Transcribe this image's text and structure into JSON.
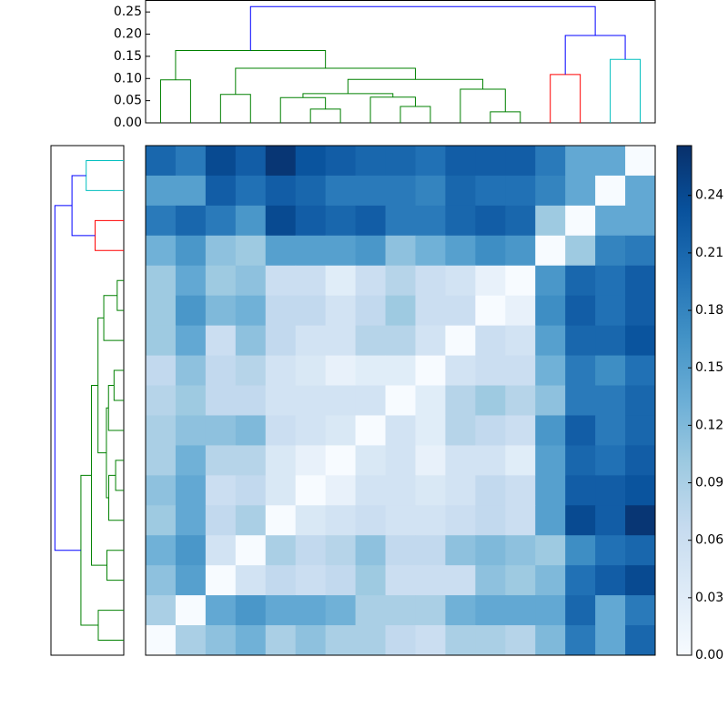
{
  "chart_data": {
    "type": "clustered-heatmap",
    "colormap": [
      "#f7fbff",
      "#deebf7",
      "#c6dbef",
      "#9ecae1",
      "#6baed6",
      "#4292c6",
      "#2171b5",
      "#08519c",
      "#08306b"
    ],
    "clim": [
      0,
      0.266
    ],
    "cticks": [
      {
        "value": 0,
        "label": "0.00"
      },
      0.03,
      0.06,
      0.09,
      0.12,
      0.15,
      0.18,
      0.21,
      0.24
    ],
    "dendrogram_ylim": [
      0,
      0.277
    ],
    "dendrogram_yticks": [
      {
        "value": 0,
        "label": "0.00"
      },
      0.05,
      {
        "value": 0.1,
        "label": "0.10"
      },
      0.15,
      {
        "value": 0.2,
        "label": "0.20"
      },
      0.25
    ],
    "links": [
      {
        "xs": [
          5,
          5,
          6,
          6
        ],
        "ys": [
          0,
          0.031,
          0.031,
          0
        ],
        "color": "#008000"
      },
      {
        "xs": [
          4,
          4,
          5.5,
          5.5
        ],
        "ys": [
          0,
          0.057,
          0.057,
          0.031
        ],
        "color": "#008000"
      },
      {
        "xs": [
          8,
          8,
          9,
          9
        ],
        "ys": [
          0,
          0.037,
          0.037,
          0
        ],
        "color": "#008000"
      },
      {
        "xs": [
          7,
          7,
          8.5,
          8.5
        ],
        "ys": [
          0,
          0.058,
          0.058,
          0.037
        ],
        "color": "#008000"
      },
      {
        "xs": [
          4.75,
          4.75,
          7.75,
          7.75
        ],
        "ys": [
          0.057,
          0.066,
          0.066,
          0.058
        ],
        "color": "#008000"
      },
      {
        "xs": [
          11,
          11,
          12,
          12
        ],
        "ys": [
          0,
          0.025,
          0.025,
          0
        ],
        "color": "#008000"
      },
      {
        "xs": [
          10,
          10,
          11.5,
          11.5
        ],
        "ys": [
          0,
          0.076,
          0.076,
          0.025
        ],
        "color": "#008000"
      },
      {
        "xs": [
          6.25,
          6.25,
          10.75,
          10.75
        ],
        "ys": [
          0.066,
          0.098,
          0.098,
          0.076
        ],
        "color": "#008000"
      },
      {
        "xs": [
          2,
          2,
          3,
          3
        ],
        "ys": [
          0,
          0.064,
          0.064,
          0
        ],
        "color": "#008000"
      },
      {
        "xs": [
          2.5,
          2.5,
          8.5,
          8.5
        ],
        "ys": [
          0.064,
          0.123,
          0.123,
          0.098
        ],
        "color": "#008000"
      },
      {
        "xs": [
          0,
          0,
          1,
          1
        ],
        "ys": [
          0,
          0.097,
          0.097,
          0
        ],
        "color": "#008000"
      },
      {
        "xs": [
          0.5,
          0.5,
          5.5,
          5.5
        ],
        "ys": [
          0.097,
          0.163,
          0.163,
          0.123
        ],
        "color": "#008000"
      },
      {
        "xs": [
          13,
          13,
          14,
          14
        ],
        "ys": [
          0,
          0.109,
          0.109,
          0
        ],
        "color": "#ff0000"
      },
      {
        "xs": [
          15,
          15,
          16,
          16
        ],
        "ys": [
          0,
          0.143,
          0.143,
          0
        ],
        "color": "#00bfbf"
      },
      {
        "xs": [
          13.5,
          13.5,
          15.5,
          15.5
        ],
        "ys": [
          0.109,
          0.197,
          0.197,
          0.143
        ],
        "color": "#0000ff"
      },
      {
        "xs": [
          3,
          3,
          14.5,
          14.5
        ],
        "ys": [
          0.163,
          0.262,
          0.262,
          0.197
        ],
        "color": "#0000ff"
      }
    ],
    "matrix": [
      [
        0.21,
        0.19,
        0.24,
        0.22,
        0.26,
        0.23,
        0.22,
        0.21,
        0.21,
        0.2,
        0.22,
        0.22,
        0.22,
        0.19,
        0.14,
        0.14,
        0
      ],
      [
        0.15,
        0.15,
        0.22,
        0.2,
        0.22,
        0.21,
        0.19,
        0.19,
        0.19,
        0.18,
        0.21,
        0.2,
        0.2,
        0.18,
        0.14,
        0,
        0.14
      ],
      [
        0.19,
        0.21,
        0.19,
        0.16,
        0.24,
        0.22,
        0.21,
        0.22,
        0.19,
        0.19,
        0.21,
        0.22,
        0.21,
        0.1,
        0,
        0.14,
        0.14
      ],
      [
        0.13,
        0.16,
        0.11,
        0.1,
        0.15,
        0.15,
        0.15,
        0.16,
        0.11,
        0.13,
        0.15,
        0.17,
        0.16,
        0,
        0.1,
        0.18,
        0.19
      ],
      [
        0.1,
        0.14,
        0.1,
        0.11,
        0.06,
        0.06,
        0.03,
        0.06,
        0.08,
        0.06,
        0.05,
        0.02,
        0,
        0.16,
        0.21,
        0.2,
        0.22
      ],
      [
        0.1,
        0.16,
        0.12,
        0.13,
        0.07,
        0.07,
        0.05,
        0.07,
        0.1,
        0.06,
        0.06,
        0,
        0.02,
        0.17,
        0.22,
        0.2,
        0.22
      ],
      [
        0.1,
        0.14,
        0.06,
        0.11,
        0.07,
        0.05,
        0.05,
        0.08,
        0.08,
        0.05,
        0,
        0.06,
        0.05,
        0.15,
        0.21,
        0.21,
        0.23
      ],
      [
        0.07,
        0.11,
        0.07,
        0.08,
        0.05,
        0.04,
        0.02,
        0.03,
        0.03,
        0,
        0.05,
        0.06,
        0.06,
        0.13,
        0.19,
        0.17,
        0.2
      ],
      [
        0.08,
        0.1,
        0.07,
        0.07,
        0.05,
        0.05,
        0.05,
        0.05,
        0,
        0.03,
        0.08,
        0.1,
        0.08,
        0.11,
        0.19,
        0.19,
        0.21
      ],
      [
        0.09,
        0.11,
        0.11,
        0.12,
        0.06,
        0.05,
        0.04,
        0,
        0.05,
        0.03,
        0.08,
        0.07,
        0.06,
        0.16,
        0.22,
        0.19,
        0.21
      ],
      [
        0.09,
        0.13,
        0.08,
        0.08,
        0.04,
        0.02,
        0,
        0.04,
        0.05,
        0.02,
        0.05,
        0.05,
        0.03,
        0.15,
        0.21,
        0.2,
        0.22
      ],
      [
        0.11,
        0.14,
        0.06,
        0.07,
        0.04,
        0,
        0.02,
        0.05,
        0.05,
        0.04,
        0.05,
        0.07,
        0.06,
        0.15,
        0.22,
        0.22,
        0.23
      ],
      [
        0.1,
        0.14,
        0.07,
        0.09,
        0,
        0.04,
        0.05,
        0.06,
        0.05,
        0.05,
        0.06,
        0.07,
        0.06,
        0.15,
        0.24,
        0.22,
        0.26
      ],
      [
        0.13,
        0.16,
        0.05,
        0,
        0.09,
        0.07,
        0.08,
        0.11,
        0.07,
        0.07,
        0.11,
        0.12,
        0.11,
        0.1,
        0.17,
        0.2,
        0.21
      ],
      [
        0.11,
        0.15,
        0,
        0.05,
        0.07,
        0.06,
        0.07,
        0.1,
        0.06,
        0.06,
        0.06,
        0.11,
        0.1,
        0.12,
        0.2,
        0.22,
        0.24
      ],
      [
        0.09,
        0,
        0.14,
        0.16,
        0.14,
        0.14,
        0.13,
        0.09,
        0.09,
        0.09,
        0.13,
        0.14,
        0.14,
        0.14,
        0.21,
        0.14,
        0.19
      ],
      [
        0,
        0.09,
        0.11,
        0.13,
        0.09,
        0.11,
        0.09,
        0.09,
        0.07,
        0.06,
        0.09,
        0.09,
        0.08,
        0.12,
        0.19,
        0.14,
        0.21
      ]
    ]
  }
}
